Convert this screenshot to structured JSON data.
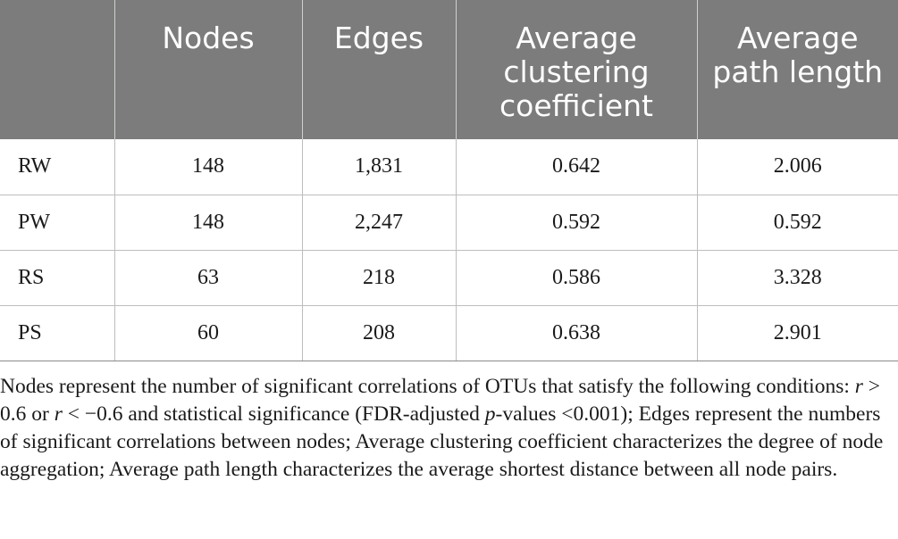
{
  "table": {
    "headers": [
      "",
      "Nodes",
      "Edges",
      "Average clustering coefficient",
      "Average path length"
    ],
    "rows": [
      {
        "label": "RW",
        "nodes": "148",
        "edges": "1,831",
        "clustering": "0.642",
        "path": "2.006"
      },
      {
        "label": "PW",
        "nodes": "148",
        "edges": "2,247",
        "clustering": "0.592",
        "path": "0.592"
      },
      {
        "label": "RS",
        "nodes": "63",
        "edges": "218",
        "clustering": "0.586",
        "path": "3.328"
      },
      {
        "label": "PS",
        "nodes": "60",
        "edges": "208",
        "clustering": "0.638",
        "path": "2.901"
      }
    ]
  },
  "footnote": {
    "t1": "Nodes represent the number of significant correlations of OTUs that satisfy the following conditions: ",
    "r1": "r",
    "t2": " > 0.6 or ",
    "r2": "r",
    "t3": " < −0.6 and statistical significance (FDR-adjusted ",
    "p": "p",
    "t4": "-values <0.001); Edges represent the numbers of significant correlations between nodes; Average clustering coefficient characterizes the degree of node aggregation; Average path length characterizes the average shortest distance between all node pairs."
  }
}
